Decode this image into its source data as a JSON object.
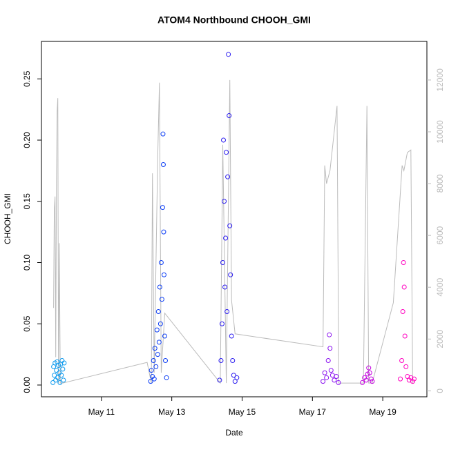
{
  "chart_data": {
    "type": "scatter",
    "title": "ATOM4 Northbound CHOOH_GMI",
    "x_label": "Date",
    "y_label": "CHOOH_GMI",
    "xlim": [
      9.294,
      20.255
    ],
    "xticks": [
      {
        "value": 11,
        "label": "May 11"
      },
      {
        "value": 13,
        "label": "May 13"
      },
      {
        "value": 15,
        "label": "May 15"
      },
      {
        "value": 17,
        "label": "May 17"
      },
      {
        "value": 19,
        "label": "May 19"
      }
    ],
    "ylim": [
      -0.0096,
      0.2806
    ],
    "yticks": [
      {
        "value": 0,
        "label": "0.00"
      },
      {
        "value": 0.05,
        "label": "0.05"
      },
      {
        "value": 0.1,
        "label": "0.10"
      },
      {
        "value": 0.15,
        "label": "0.15"
      },
      {
        "value": 0.2,
        "label": "0.20"
      },
      {
        "value": 0.25,
        "label": "0.25"
      }
    ],
    "y2lim": [
      -230,
      13490
    ],
    "y2ticks": [
      0,
      2000,
      4000,
      6000,
      8000,
      10000,
      12000
    ],
    "series": [
      {
        "color": "#0a99ee",
        "x": [
          9.62,
          9.64,
          9.66,
          9.68,
          9.7,
          9.72,
          9.74,
          9.76,
          9.78,
          9.8,
          9.82,
          9.84,
          9.86,
          9.88,
          9.9,
          9.92,
          9.94
        ],
        "values": [
          0.002,
          0.015,
          0.008,
          0.018,
          0.004,
          0.012,
          0.019,
          0.006,
          0.016,
          0.01,
          0.002,
          0.017,
          0.008,
          0.02,
          0.013,
          0.004,
          0.018
        ]
      },
      {
        "color": "#0a3cf5",
        "x": [
          12.4,
          12.42,
          12.45,
          12.48,
          12.5,
          12.52,
          12.55,
          12.58,
          12.6,
          12.62,
          12.64,
          12.66,
          12.68,
          12.7,
          12.72,
          12.74,
          12.75,
          12.76,
          12.77,
          12.78,
          12.8,
          12.82,
          12.85
        ],
        "values": [
          0.003,
          0.012,
          0.007,
          0.02,
          0.005,
          0.03,
          0.015,
          0.045,
          0.025,
          0.06,
          0.035,
          0.08,
          0.05,
          0.1,
          0.07,
          0.145,
          0.205,
          0.18,
          0.125,
          0.09,
          0.04,
          0.02,
          0.006
        ]
      },
      {
        "color": "#2b1cf0",
        "x": [
          14.36,
          14.4,
          14.43,
          14.45,
          14.47,
          14.49,
          14.51,
          14.53,
          14.55,
          14.57,
          14.59,
          14.61,
          14.63,
          14.65,
          14.67,
          14.7,
          14.73,
          14.76,
          14.8,
          14.85
        ],
        "values": [
          0.004,
          0.02,
          0.05,
          0.1,
          0.2,
          0.15,
          0.08,
          0.12,
          0.19,
          0.06,
          0.17,
          0.27,
          0.22,
          0.13,
          0.09,
          0.04,
          0.02,
          0.008,
          0.003,
          0.006
        ]
      },
      {
        "color": "#8a10f0",
        "x": [
          17.3,
          17.35,
          17.4,
          17.45,
          17.48,
          17.5,
          17.53,
          17.57,
          17.62,
          17.68,
          17.74
        ],
        "values": [
          0.003,
          0.01,
          0.006,
          0.02,
          0.041,
          0.03,
          0.012,
          0.008,
          0.004,
          0.007,
          0.002
        ]
      },
      {
        "color": "#c400e0",
        "x": [
          18.42,
          18.48,
          18.53,
          18.57,
          18.6,
          18.63,
          18.67,
          18.7
        ],
        "values": [
          0.002,
          0.006,
          0.004,
          0.009,
          0.014,
          0.01,
          0.005,
          0.003
        ]
      },
      {
        "color": "#ff00c0",
        "x": [
          19.5,
          19.54,
          19.57,
          19.59,
          19.61,
          19.63,
          19.66,
          19.7,
          19.75,
          19.8,
          19.85,
          19.89
        ],
        "values": [
          0.005,
          0.02,
          0.06,
          0.1,
          0.08,
          0.04,
          0.015,
          0.007,
          0.004,
          0.006,
          0.003,
          0.005
        ]
      },
      {
        "color": "#bbbbbb",
        "mode": "line",
        "axis": "y2",
        "x": [
          9.64,
          9.66,
          9.68,
          9.7,
          9.72,
          9.74,
          9.76,
          9.78,
          9.8,
          9.83,
          9.9,
          12.3,
          12.42,
          12.45,
          12.5,
          12.6,
          12.65,
          12.7,
          12.8,
          14.38,
          14.45,
          14.55,
          14.65,
          14.7,
          14.8,
          17.3,
          17.35,
          17.4,
          17.5,
          17.7,
          17.75,
          18.0,
          18.1,
          18.45,
          18.55,
          18.6,
          18.7,
          19.3,
          19.55,
          19.6,
          19.7,
          19.8,
          19.85
        ],
        "values": [
          3200,
          7000,
          7500,
          1300,
          8000,
          10800,
          11300,
          300,
          5700,
          300,
          300,
          1100,
          300,
          8400,
          700,
          9000,
          11900,
          700,
          3000,
          300,
          9500,
          300,
          12000,
          3500,
          2200,
          1700,
          8700,
          8000,
          8500,
          11000,
          300,
          300,
          300,
          300,
          11000,
          300,
          300,
          3400,
          8700,
          8500,
          9200,
          9300,
          300
        ]
      }
    ]
  }
}
